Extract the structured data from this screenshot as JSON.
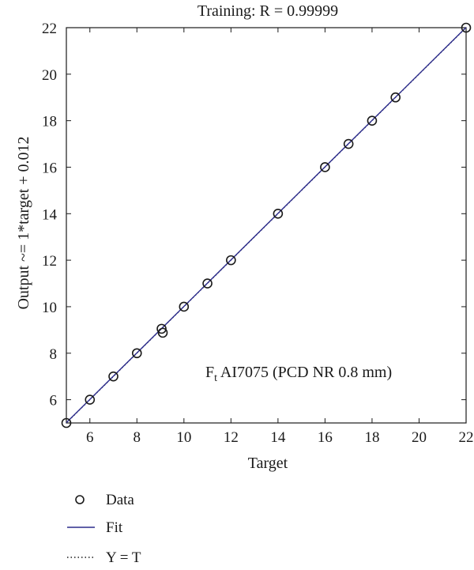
{
  "chart_data": {
    "type": "scatter",
    "title": "Training: R = 0.99999",
    "xlabel": "Target",
    "ylabel": "Output ~= 1*target + 0.012",
    "xlim": [
      5,
      22
    ],
    "ylim": [
      5,
      22
    ],
    "xticks": [
      "6",
      "8",
      "10",
      "12",
      "14",
      "16",
      "18",
      "20",
      "22"
    ],
    "yticks": [
      "6",
      "8",
      "10",
      "12",
      "14",
      "16",
      "18",
      "20",
      "22"
    ],
    "grid": false,
    "annotation": {
      "main": "F",
      "subscript": "t",
      "rest": " AI7075 (PCD NR 0.8 mm)"
    },
    "legend": {
      "placement": "bottom-left",
      "entries": [
        {
          "label": "Data",
          "style": "circle-marker"
        },
        {
          "label": "Fit",
          "style": "solid-line",
          "color": "#2b2b8c"
        },
        {
          "label": "Y = T",
          "style": "dotted-line"
        }
      ]
    },
    "series": [
      {
        "name": "Data",
        "type": "scatter",
        "marker": "circle",
        "x": [
          5,
          6,
          7,
          8,
          9.05,
          9.1,
          10,
          11,
          12,
          14,
          16,
          17,
          18,
          19,
          22
        ],
        "y": [
          5,
          6,
          7,
          8,
          9.05,
          8.88,
          10,
          11,
          12,
          14,
          16,
          17,
          18,
          19,
          22
        ]
      },
      {
        "name": "Fit",
        "type": "line",
        "slope": 1,
        "intercept": 0.012,
        "color": "#2b2b8c"
      },
      {
        "name": "Y = T",
        "type": "line",
        "slope": 1,
        "intercept": 0,
        "style": "dotted"
      }
    ]
  }
}
